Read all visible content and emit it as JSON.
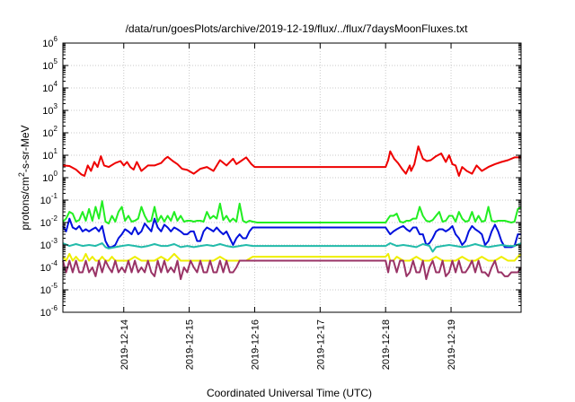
{
  "chart_data": {
    "type": "line",
    "title": "/data/run/goesPlots/archive/2019-12-19/flux/../flux/7daysMoonFluxes.txt",
    "xlabel": "Coordinated Universal Time (UTC)",
    "ylabel": "protons/cm²-s-sr-MeV",
    "yscale": "log",
    "ylim": [
      1e-06,
      1000000.0
    ],
    "xlim": [
      0,
      7
    ],
    "grid": true,
    "y_ticks": [
      {
        "value": 1e-06,
        "base": "10",
        "exp": "-6"
      },
      {
        "value": 1e-05,
        "base": "10",
        "exp": "-5"
      },
      {
        "value": 0.0001,
        "base": "10",
        "exp": "-4"
      },
      {
        "value": 0.001,
        "base": "10",
        "exp": "-3"
      },
      {
        "value": 0.01,
        "base": "10",
        "exp": "-2"
      },
      {
        "value": 0.1,
        "base": "10",
        "exp": "-1"
      },
      {
        "value": 1,
        "base": "10",
        "exp": "0"
      },
      {
        "value": 10,
        "base": "10",
        "exp": "1"
      },
      {
        "value": 100,
        "base": "10",
        "exp": "2"
      },
      {
        "value": 1000,
        "base": "10",
        "exp": "3"
      },
      {
        "value": 10000,
        "base": "10",
        "exp": "4"
      },
      {
        "value": 100000,
        "base": "10",
        "exp": "5"
      },
      {
        "value": 1000000,
        "base": "10",
        "exp": "6"
      }
    ],
    "x_ticks": [
      {
        "value": 0.93,
        "label": "2019-12-14"
      },
      {
        "value": 1.93,
        "label": "2019-12-15"
      },
      {
        "value": 2.93,
        "label": "2019-12-16"
      },
      {
        "value": 3.93,
        "label": "2019-12-17"
      },
      {
        "value": 4.93,
        "label": "2019-12-18"
      },
      {
        "value": 5.93,
        "label": "2019-12-19"
      }
    ],
    "x_ticks_note": "x values are in days from the left edge of the plot",
    "series": [
      {
        "color": "#ee0000",
        "x": [
          0,
          0.1,
          0.2,
          0.28,
          0.33,
          0.38,
          0.43,
          0.48,
          0.53,
          0.58,
          0.63,
          0.7,
          0.8,
          0.88,
          0.93,
          0.98,
          1.03,
          1.08,
          1.13,
          1.2,
          1.3,
          1.4,
          1.5,
          1.56,
          1.6,
          1.68,
          1.75,
          1.82,
          1.9,
          2.0,
          2.1,
          2.2,
          2.3,
          2.4,
          2.5,
          2.6,
          2.65,
          2.7,
          2.8,
          2.88,
          2.93,
          2.97,
          4.93,
          4.97,
          5.0,
          5.06,
          5.12,
          5.18,
          5.24,
          5.3,
          5.32,
          5.37,
          5.43,
          5.5,
          5.56,
          5.62,
          5.7,
          5.78,
          5.85,
          5.9,
          5.95,
          6.0,
          6.05,
          6.1,
          6.17,
          6.25,
          6.32,
          6.4,
          6.5,
          6.6,
          6.7,
          6.8,
          6.9,
          7.0
        ],
        "values": [
          3.5,
          3.3,
          2.3,
          1.4,
          1.2,
          3.5,
          2.0,
          5.0,
          3.0,
          9.0,
          3.5,
          3.0,
          4.5,
          5.5,
          3.5,
          5.0,
          3.0,
          2.3,
          5.0,
          2.0,
          3.5,
          3.5,
          4.5,
          7.0,
          8.5,
          5.5,
          4.0,
          2.5,
          2.2,
          1.5,
          2.5,
          3.0,
          2.0,
          6.0,
          3.5,
          7.0,
          4.0,
          5.0,
          8.0,
          4.0,
          3.0,
          3.0,
          3.0,
          6.0,
          15.0,
          7.0,
          4.5,
          2.5,
          1.5,
          3.5,
          2.0,
          4.0,
          25.0,
          7.0,
          5.5,
          6.0,
          9.0,
          12.0,
          5.0,
          10.0,
          4.0,
          3.5,
          1.2,
          3.0,
          2.0,
          1.5,
          3.5,
          2.0,
          3.0,
          4.0,
          5.0,
          6.0,
          8.0,
          8.0
        ]
      },
      {
        "color": "#22ee22",
        "x": [
          0,
          0.05,
          0.1,
          0.15,
          0.2,
          0.25,
          0.3,
          0.35,
          0.4,
          0.45,
          0.5,
          0.55,
          0.6,
          0.65,
          0.7,
          0.75,
          0.8,
          0.85,
          0.9,
          0.95,
          1.0,
          1.05,
          1.1,
          1.15,
          1.2,
          1.25,
          1.3,
          1.35,
          1.4,
          1.45,
          1.5,
          1.55,
          1.6,
          1.65,
          1.7,
          1.75,
          1.8,
          1.85,
          1.9,
          1.95,
          2.0,
          2.05,
          2.1,
          2.15,
          2.2,
          2.25,
          2.3,
          2.35,
          2.4,
          2.45,
          2.5,
          2.55,
          2.6,
          2.65,
          2.7,
          2.75,
          2.8,
          2.85,
          2.9,
          2.97,
          4.93,
          4.97,
          5.0,
          5.05,
          5.1,
          5.15,
          5.2,
          5.25,
          5.3,
          5.35,
          5.4,
          5.45,
          5.5,
          5.55,
          5.6,
          5.65,
          5.7,
          5.75,
          5.8,
          5.85,
          5.9,
          5.95,
          6.0,
          6.05,
          6.1,
          6.15,
          6.2,
          6.25,
          6.3,
          6.35,
          6.4,
          6.45,
          6.5,
          6.55,
          6.6,
          6.65,
          6.7,
          6.75,
          6.8,
          6.85,
          6.9,
          6.95,
          7.0
        ],
        "values": [
          0.011,
          0.015,
          0.03,
          0.025,
          0.011,
          0.013,
          0.03,
          0.012,
          0.04,
          0.012,
          0.05,
          0.015,
          0.09,
          0.011,
          0.009,
          0.02,
          0.011,
          0.03,
          0.05,
          0.012,
          0.02,
          0.011,
          0.012,
          0.015,
          0.05,
          0.02,
          0.011,
          0.012,
          0.05,
          0.011,
          0.02,
          0.011,
          0.02,
          0.012,
          0.03,
          0.012,
          0.02,
          0.011,
          0.012,
          0.012,
          0.011,
          0.012,
          0.012,
          0.011,
          0.03,
          0.015,
          0.02,
          0.015,
          0.07,
          0.013,
          0.02,
          0.011,
          0.015,
          0.011,
          0.07,
          0.012,
          0.01,
          0.012,
          0.011,
          0.01,
          0.01,
          0.015,
          0.02,
          0.02,
          0.025,
          0.011,
          0.01,
          0.012,
          0.012,
          0.015,
          0.015,
          0.05,
          0.02,
          0.012,
          0.011,
          0.013,
          0.02,
          0.03,
          0.011,
          0.012,
          0.02,
          0.02,
          0.011,
          0.03,
          0.015,
          0.011,
          0.012,
          0.03,
          0.011,
          0.02,
          0.011,
          0.012,
          0.05,
          0.012,
          0.011,
          0.012,
          0.012,
          0.012,
          0.011,
          0.01,
          0.011,
          0.04,
          0.05
        ]
      },
      {
        "color": "#0011dd",
        "x": [
          0,
          0.05,
          0.1,
          0.15,
          0.2,
          0.25,
          0.3,
          0.35,
          0.4,
          0.45,
          0.5,
          0.55,
          0.6,
          0.65,
          0.7,
          0.75,
          0.8,
          0.85,
          0.9,
          0.95,
          1.0,
          1.05,
          1.1,
          1.15,
          1.2,
          1.25,
          1.3,
          1.35,
          1.4,
          1.45,
          1.5,
          1.55,
          1.6,
          1.65,
          1.7,
          1.75,
          1.8,
          1.85,
          1.9,
          1.95,
          2.0,
          2.05,
          2.1,
          2.15,
          2.2,
          2.25,
          2.3,
          2.35,
          2.4,
          2.45,
          2.5,
          2.55,
          2.6,
          2.65,
          2.7,
          2.75,
          2.8,
          2.85,
          2.9,
          2.97,
          4.93,
          4.97,
          5.0,
          5.05,
          5.1,
          5.15,
          5.2,
          5.25,
          5.3,
          5.35,
          5.4,
          5.45,
          5.5,
          5.55,
          5.6,
          5.65,
          5.7,
          5.75,
          5.8,
          5.85,
          5.9,
          5.95,
          6.0,
          6.05,
          6.1,
          6.15,
          6.2,
          6.25,
          6.3,
          6.35,
          6.4,
          6.45,
          6.5,
          6.55,
          6.6,
          6.65,
          6.7,
          6.75,
          6.8,
          6.85,
          6.9,
          6.95,
          7.0
        ],
        "values": [
          0.007,
          0.004,
          0.015,
          0.006,
          0.005,
          0.007,
          0.004,
          0.005,
          0.004,
          0.005,
          0.006,
          0.004,
          0.007,
          0.0015,
          0.0008,
          0.0008,
          0.001,
          0.002,
          0.003,
          0.005,
          0.004,
          0.003,
          0.006,
          0.003,
          0.004,
          0.009,
          0.006,
          0.004,
          0.015,
          0.006,
          0.004,
          0.008,
          0.006,
          0.004,
          0.006,
          0.005,
          0.004,
          0.003,
          0.003,
          0.004,
          0.004,
          0.0015,
          0.0015,
          0.004,
          0.006,
          0.005,
          0.004,
          0.006,
          0.004,
          0.003,
          0.004,
          0.002,
          0.001,
          0.002,
          0.003,
          0.002,
          0.002,
          0.004,
          0.006,
          0.006,
          0.006,
          0.004,
          0.003,
          0.004,
          0.005,
          0.006,
          0.007,
          0.005,
          0.004,
          0.006,
          0.006,
          0.003,
          0.003,
          0.001,
          0.0012,
          0.002,
          0.004,
          0.005,
          0.005,
          0.004,
          0.005,
          0.007,
          0.003,
          0.002,
          0.001,
          0.0015,
          0.004,
          0.007,
          0.005,
          0.004,
          0.003,
          0.001,
          0.0015,
          0.004,
          0.008,
          0.004,
          0.0015,
          0.0008,
          0.0008,
          0.0008,
          0.0009,
          0.003,
          0.003
        ]
      },
      {
        "color": "#22bbaa",
        "x": [
          0,
          0.1,
          0.2,
          0.3,
          0.4,
          0.5,
          0.6,
          0.65,
          0.7,
          0.8,
          0.9,
          1.0,
          1.1,
          1.2,
          1.3,
          1.4,
          1.5,
          1.6,
          1.7,
          1.8,
          1.9,
          2.0,
          2.1,
          2.2,
          2.3,
          2.4,
          2.5,
          2.6,
          2.7,
          2.8,
          2.9,
          2.97,
          4.93,
          5.0,
          5.1,
          5.2,
          5.3,
          5.4,
          5.5,
          5.6,
          5.65,
          5.7,
          5.8,
          5.9,
          6.0,
          6.1,
          6.2,
          6.3,
          6.4,
          6.5,
          6.6,
          6.7,
          6.8,
          6.9,
          7.0
        ],
        "values": [
          0.0012,
          0.0009,
          0.0011,
          0.0009,
          0.001,
          0.0009,
          0.0012,
          0.0008,
          0.0007,
          0.0008,
          0.0009,
          0.001,
          0.0009,
          0.0008,
          0.0009,
          0.0011,
          0.0009,
          0.0009,
          0.0011,
          0.0008,
          0.0009,
          0.0008,
          0.0009,
          0.001,
          0.0009,
          0.0011,
          0.0009,
          0.0008,
          0.0009,
          0.001,
          0.0009,
          0.0009,
          0.0009,
          0.0012,
          0.0009,
          0.001,
          0.0009,
          0.0008,
          0.0011,
          0.0009,
          0.0005,
          0.0008,
          0.0009,
          0.001,
          0.0009,
          0.0008,
          0.0009,
          0.0011,
          0.0009,
          0.0008,
          0.0009,
          0.001,
          0.0009,
          0.0009,
          0.0012
        ]
      },
      {
        "color": "#eeee00",
        "x": [
          0,
          0.05,
          0.1,
          0.15,
          0.2,
          0.25,
          0.3,
          0.35,
          0.4,
          0.45,
          0.5,
          0.55,
          0.6,
          0.65,
          0.7,
          0.75,
          0.8,
          0.9,
          1.0,
          1.1,
          1.2,
          1.3,
          1.4,
          1.5,
          1.6,
          1.7,
          1.8,
          1.9,
          2.0,
          2.1,
          2.2,
          2.3,
          2.4,
          2.5,
          2.6,
          2.7,
          2.8,
          2.9,
          2.97,
          4.93,
          4.97,
          5.0,
          5.05,
          5.1,
          5.2,
          5.3,
          5.4,
          5.5,
          5.6,
          5.7,
          5.8,
          5.9,
          6.0,
          6.1,
          6.2,
          6.3,
          6.4,
          6.5,
          6.6,
          6.7,
          6.8,
          6.9,
          6.95,
          7.0
        ],
        "values": [
          0.0003,
          0.0002,
          0.0004,
          0.0002,
          0.0003,
          0.0002,
          0.0002,
          0.0004,
          0.0002,
          0.0003,
          0.0002,
          0.0002,
          0.0003,
          0.0002,
          0.0002,
          0.0003,
          0.0002,
          0.0002,
          0.0002,
          0.0003,
          0.0002,
          0.0002,
          0.0002,
          0.0003,
          0.0002,
          0.0004,
          0.0002,
          0.0002,
          0.0002,
          0.0002,
          0.0002,
          0.0002,
          0.0003,
          0.0002,
          0.0002,
          0.0002,
          0.0002,
          0.0003,
          0.0003,
          0.0003,
          0.0004,
          0.0002,
          0.0002,
          0.0003,
          0.0002,
          0.0002,
          0.0003,
          0.0002,
          0.0002,
          0.0003,
          0.0002,
          0.0002,
          0.0002,
          0.0003,
          0.0002,
          0.0002,
          0.0003,
          0.0002,
          0.0002,
          0.0003,
          0.0002,
          0.0002,
          0.0003,
          0.0004
        ]
      },
      {
        "color": "#993366",
        "x": [
          0,
          0.05,
          0.1,
          0.15,
          0.2,
          0.25,
          0.3,
          0.35,
          0.4,
          0.45,
          0.5,
          0.55,
          0.6,
          0.65,
          0.7,
          0.75,
          0.8,
          0.85,
          0.9,
          0.95,
          1.0,
          1.05,
          1.1,
          1.15,
          1.2,
          1.25,
          1.3,
          1.35,
          1.4,
          1.45,
          1.5,
          1.55,
          1.6,
          1.65,
          1.7,
          1.75,
          1.8,
          1.85,
          1.9,
          1.95,
          2.0,
          2.05,
          2.1,
          2.15,
          2.2,
          2.25,
          2.3,
          2.35,
          2.4,
          2.45,
          2.5,
          2.55,
          2.6,
          2.65,
          2.7,
          2.75,
          2.8,
          2.85,
          2.9,
          2.97,
          4.93,
          4.97,
          5.0,
          5.05,
          5.1,
          5.15,
          5.2,
          5.25,
          5.3,
          5.35,
          5.4,
          5.45,
          5.5,
          5.55,
          5.6,
          5.65,
          5.7,
          5.75,
          5.8,
          5.85,
          5.9,
          5.95,
          6.0,
          6.05,
          6.1,
          6.15,
          6.2,
          6.25,
          6.3,
          6.35,
          6.4,
          6.45,
          6.5,
          6.55,
          6.6,
          6.65,
          6.7,
          6.75,
          6.8,
          6.85,
          6.9,
          6.95,
          7.0
        ],
        "values": [
          0.0002,
          6e-05,
          0.0002,
          6e-05,
          0.0002,
          6e-05,
          6e-05,
          0.0002,
          6e-05,
          0.0001,
          4e-05,
          0.0002,
          6e-05,
          0.0002,
          0.0001,
          6e-05,
          0.0002,
          6e-05,
          0.0001,
          6e-05,
          0.0002,
          6e-05,
          0.0002,
          6e-05,
          0.0001,
          6e-05,
          0.0002,
          6e-05,
          4e-05,
          0.0002,
          6e-05,
          0.0002,
          6e-05,
          0.0001,
          6e-05,
          0.0002,
          3e-05,
          0.0001,
          6e-05,
          0.0002,
          0.0001,
          6e-05,
          0.0002,
          6e-05,
          6e-05,
          0.0002,
          6e-05,
          6e-05,
          0.0002,
          6e-05,
          0.0002,
          6e-05,
          6e-05,
          0.0001,
          0.0002,
          0.0002,
          0.0002,
          0.0002,
          0.0002,
          0.0002,
          0.0002,
          6e-05,
          0.0002,
          0.0002,
          6e-05,
          0.0002,
          0.0002,
          4e-05,
          6e-05,
          0.0002,
          6e-05,
          6e-05,
          0.0002,
          3e-05,
          0.0001,
          0.0002,
          6e-05,
          6e-05,
          0.0002,
          4e-05,
          6e-05,
          0.0002,
          6e-05,
          0.0002,
          6e-05,
          6e-05,
          0.0001,
          0.0002,
          6e-05,
          0.0002,
          6e-05,
          6e-05,
          4e-05,
          0.0001,
          0.0002,
          6e-05,
          6e-05,
          4e-05,
          4e-05,
          6e-05,
          6e-05,
          6e-05,
          0.0001
        ]
      }
    ]
  }
}
